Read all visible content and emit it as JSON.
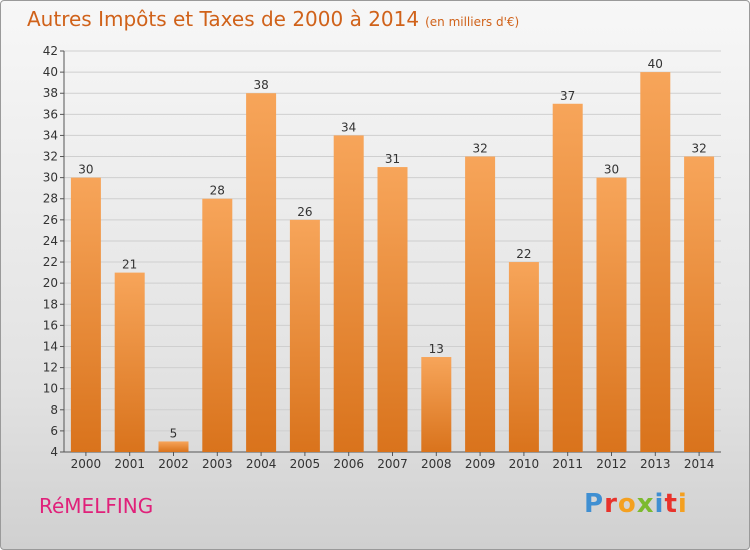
{
  "title": "Autres Impôts et Taxes de 2000 à 2014",
  "subtitle": "(en milliers d'€)",
  "place": "RéMELFING",
  "logo": {
    "letters": [
      "P",
      "r",
      "o",
      "x",
      "i",
      "t",
      "i"
    ],
    "colors": [
      "#3f8fd2",
      "#e8322b",
      "#f4a020",
      "#7cba2f",
      "#3f8fd2",
      "#e8322b",
      "#f4a020"
    ]
  },
  "colors": {
    "bar_top": "#f7a55a",
    "bar_bottom": "#d9731c",
    "title": "#d0621a",
    "place": "#e0217a"
  },
  "chart_data": {
    "type": "bar",
    "categories": [
      "2000",
      "2001",
      "2002",
      "2003",
      "2004",
      "2005",
      "2006",
      "2007",
      "2008",
      "2009",
      "2010",
      "2011",
      "2012",
      "2013",
      "2014"
    ],
    "values": [
      30,
      21,
      5,
      28,
      38,
      26,
      34,
      31,
      13,
      32,
      22,
      37,
      30,
      40,
      32
    ],
    "ylim": [
      4,
      42
    ],
    "yticks": [
      4,
      6,
      8,
      10,
      12,
      14,
      16,
      18,
      20,
      22,
      24,
      26,
      28,
      30,
      32,
      34,
      36,
      38,
      40,
      42
    ],
    "grid": true,
    "data_labels": true
  }
}
